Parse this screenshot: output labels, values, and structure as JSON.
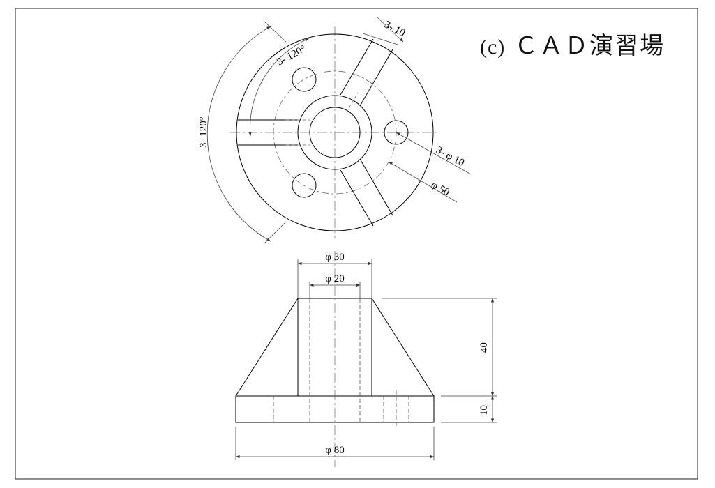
{
  "title": {
    "prefix": "(c)",
    "text": "ＣＡＤ演習場"
  },
  "top_view": {
    "angle_outer": "3- 120°",
    "angle_inner": "3- 120°",
    "rib_width": "3- 10",
    "hole_dia": "3- φ 10",
    "pcd": "φ 50"
  },
  "front_view": {
    "outer_boss": "φ 30",
    "inner_bore": "φ 20",
    "base_dia": "φ 80",
    "height_total": "40",
    "height_base": "10"
  },
  "colors": {
    "line": "#000000",
    "dim_line": "#555555",
    "center_line": "#777777"
  }
}
